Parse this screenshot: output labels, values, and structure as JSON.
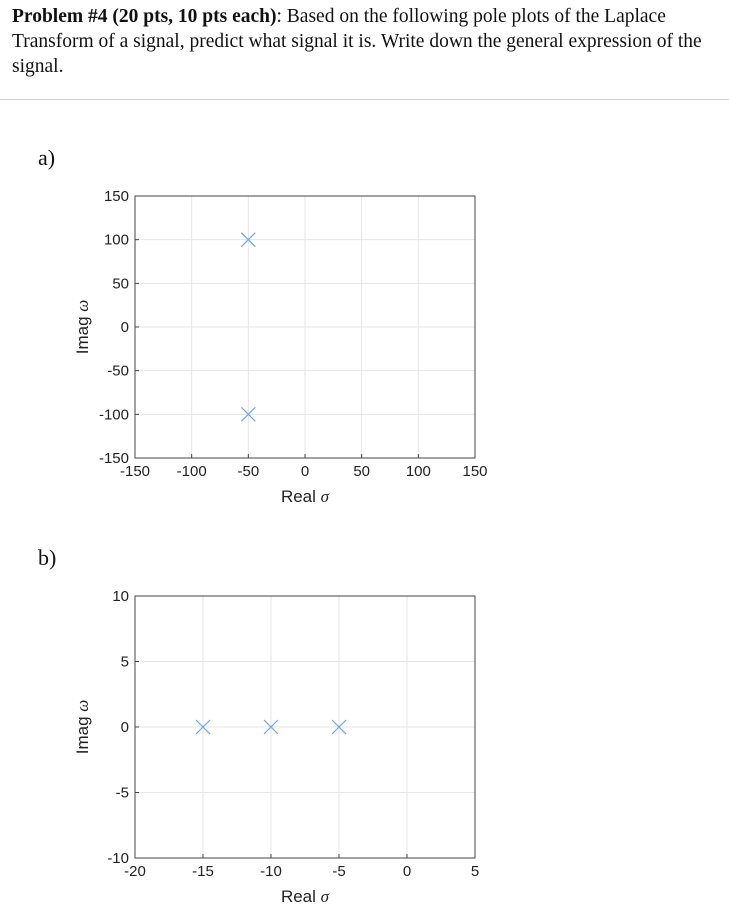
{
  "problem": {
    "heading": "Problem #4 (20 pts, 10 pts each)",
    "body": ": Based on the following pole plots of the Laplace Transform of a signal, predict what signal it is. Write down the general expression of the signal."
  },
  "parts": [
    {
      "label": "a)"
    },
    {
      "label": "b)"
    }
  ],
  "chart_data": [
    {
      "type": "scatter",
      "xlabel": "Real",
      "xlabel_symbol": "σ",
      "ylabel": "Imag",
      "ylabel_symbol": "ω",
      "xlim": [
        -150,
        150
      ],
      "ylim": [
        -150,
        150
      ],
      "xticks": [
        -150,
        -100,
        -50,
        0,
        50,
        100,
        150
      ],
      "yticks": [
        -150,
        -100,
        -50,
        0,
        50,
        100,
        150
      ],
      "marker": "x",
      "marker_color": "#6fa8dc",
      "grid": true,
      "points": [
        {
          "x": -50,
          "y": 100
        },
        {
          "x": -50,
          "y": -100
        }
      ]
    },
    {
      "type": "scatter",
      "xlabel": "Real",
      "xlabel_symbol": "σ",
      "ylabel": "Imag",
      "ylabel_symbol": "ω",
      "xlim": [
        -20,
        5
      ],
      "ylim": [
        -10,
        10
      ],
      "xticks": [
        -20,
        -15,
        -10,
        -5,
        0,
        5
      ],
      "yticks": [
        -10,
        -5,
        0,
        5,
        10
      ],
      "marker": "x",
      "marker_color": "#6fa8dc",
      "grid": true,
      "points": [
        {
          "x": -15,
          "y": 0
        },
        {
          "x": -10,
          "y": 0
        },
        {
          "x": -5,
          "y": 0
        }
      ]
    }
  ]
}
